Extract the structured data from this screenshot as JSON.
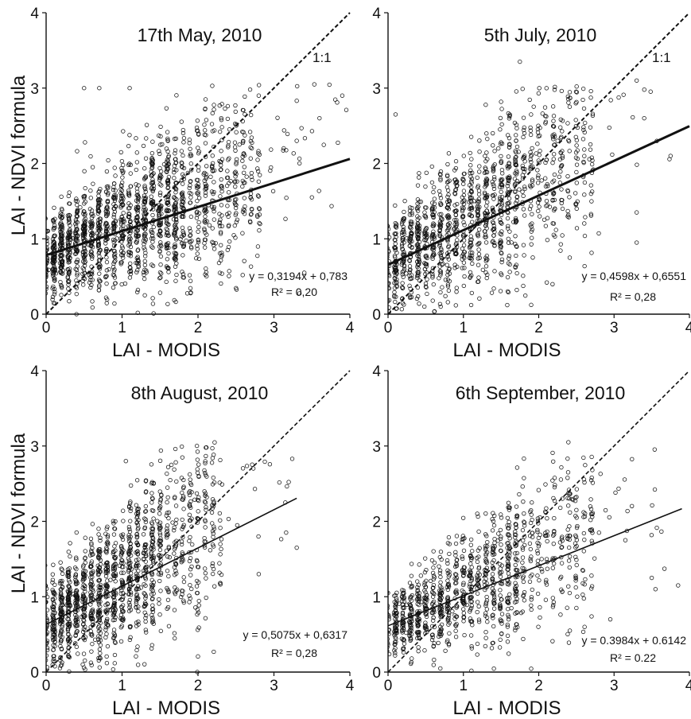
{
  "chart_data": [
    {
      "type": "scatter",
      "title": "17th May, 2010",
      "xlabel": "LAI - MODIS",
      "ylabel": "LAI - NDVI formula",
      "xlim": [
        0,
        4
      ],
      "ylim": [
        0,
        4
      ],
      "xticks": [
        "0",
        "1",
        "2",
        "3",
        "4"
      ],
      "yticks": [
        "0",
        "1",
        "2",
        "3",
        "4"
      ],
      "identity_label": "1:1",
      "regression": {
        "slope": 0.3194,
        "intercept": 0.783,
        "x_range": [
          0,
          4
        ],
        "equation": "y = 0,3194x + 0,783",
        "r2": "R² = 0,20"
      },
      "style": "bold-trend",
      "scatter_extent": {
        "x_max": 4.0,
        "y_center_scale": 0.85,
        "spread_low": 0.45,
        "spread_high": 1.1,
        "n": 1700
      },
      "points_sample": [
        [
          0.5,
          3.0
        ],
        [
          0.7,
          3.0
        ],
        [
          1.1,
          3.0
        ],
        [
          2.1,
          2.85
        ],
        [
          2.8,
          2.9
        ],
        [
          3.9,
          2.9
        ],
        [
          3.6,
          2.6
        ],
        [
          3.3,
          2.3
        ],
        [
          3.5,
          1.55
        ],
        [
          3.4,
          0.55
        ],
        [
          0.4,
          0.0
        ]
      ]
    },
    {
      "type": "scatter",
      "title": "5th July, 2010",
      "xlabel": "LAI - MODIS",
      "ylabel": "",
      "xlim": [
        0,
        4
      ],
      "ylim": [
        0,
        4
      ],
      "xticks": [
        "0",
        "1",
        "2",
        "3",
        "4"
      ],
      "yticks": [
        "0",
        "1",
        "2",
        "3",
        "4"
      ],
      "identity_label": "1:1",
      "regression": {
        "slope": 0.4598,
        "intercept": 0.6551,
        "x_range": [
          0,
          4
        ],
        "equation": "y = 0,4598x + 0,6551",
        "r2": "R² = 0,28"
      },
      "style": "bold-trend",
      "scatter_extent": {
        "x_max": 3.9,
        "y_center_scale": 1.0,
        "spread_low": 0.5,
        "spread_high": 1.2,
        "n": 1300
      },
      "points_sample": [
        [
          1.75,
          3.35
        ],
        [
          3.3,
          3.1
        ],
        [
          3.4,
          2.6
        ],
        [
          3.75,
          2.1
        ],
        [
          3.3,
          1.35
        ],
        [
          3.3,
          0.95
        ],
        [
          2.25,
          2.3
        ],
        [
          0.1,
          2.65
        ]
      ]
    },
    {
      "type": "scatter",
      "title": "8th August, 2010",
      "xlabel": "LAI - MODIS",
      "ylabel": "LAI - NDVI formula",
      "xlim": [
        0,
        4
      ],
      "ylim": [
        0,
        4
      ],
      "xticks": [
        "0",
        "1",
        "2",
        "3",
        "4"
      ],
      "yticks": [
        "0",
        "1",
        "2",
        "3",
        "4"
      ],
      "identity_label": "",
      "regression": {
        "slope": 0.5075,
        "intercept": 0.6317,
        "x_range": [
          0,
          3.3
        ],
        "equation": "y = 0,5075x + 0,6317",
        "r2": "R² = 0,28"
      },
      "style": "thin-trend",
      "scatter_extent": {
        "x_max": 3.3,
        "y_center_scale": 1.0,
        "spread_low": 0.5,
        "spread_high": 1.2,
        "n": 1400
      },
      "points_sample": [
        [
          1.05,
          2.8
        ],
        [
          1.65,
          2.75
        ],
        [
          3.15,
          2.25
        ],
        [
          3.3,
          1.65
        ],
        [
          2.1,
          2.25
        ],
        [
          2.8,
          1.3
        ]
      ]
    },
    {
      "type": "scatter",
      "title": "6th September, 2010",
      "xlabel": "LAI - MODIS",
      "ylabel": "",
      "xlim": [
        0,
        4
      ],
      "ylim": [
        0,
        4
      ],
      "xticks": [
        "0",
        "1",
        "2",
        "3",
        "4"
      ],
      "yticks": [
        "0",
        "1",
        "2",
        "3",
        "4"
      ],
      "identity_label": "",
      "regression": {
        "slope": 0.3984,
        "intercept": 0.6142,
        "x_range": [
          0,
          3.9
        ],
        "equation": "y = 0.3984x + 0.6142",
        "r2": "R² = 0.22"
      },
      "style": "thin-trend",
      "scatter_extent": {
        "x_max": 3.9,
        "y_center_scale": 0.85,
        "spread_low": 0.4,
        "spread_high": 0.95,
        "n": 1100
      },
      "points_sample": [
        [
          2.5,
          2.15
        ],
        [
          2.8,
          1.85
        ],
        [
          3.15,
          1.75
        ],
        [
          3.5,
          1.25
        ],
        [
          3.55,
          1.1
        ],
        [
          3.85,
          1.15
        ],
        [
          2.95,
          0.7
        ],
        [
          2.5,
          0.85
        ]
      ]
    }
  ]
}
